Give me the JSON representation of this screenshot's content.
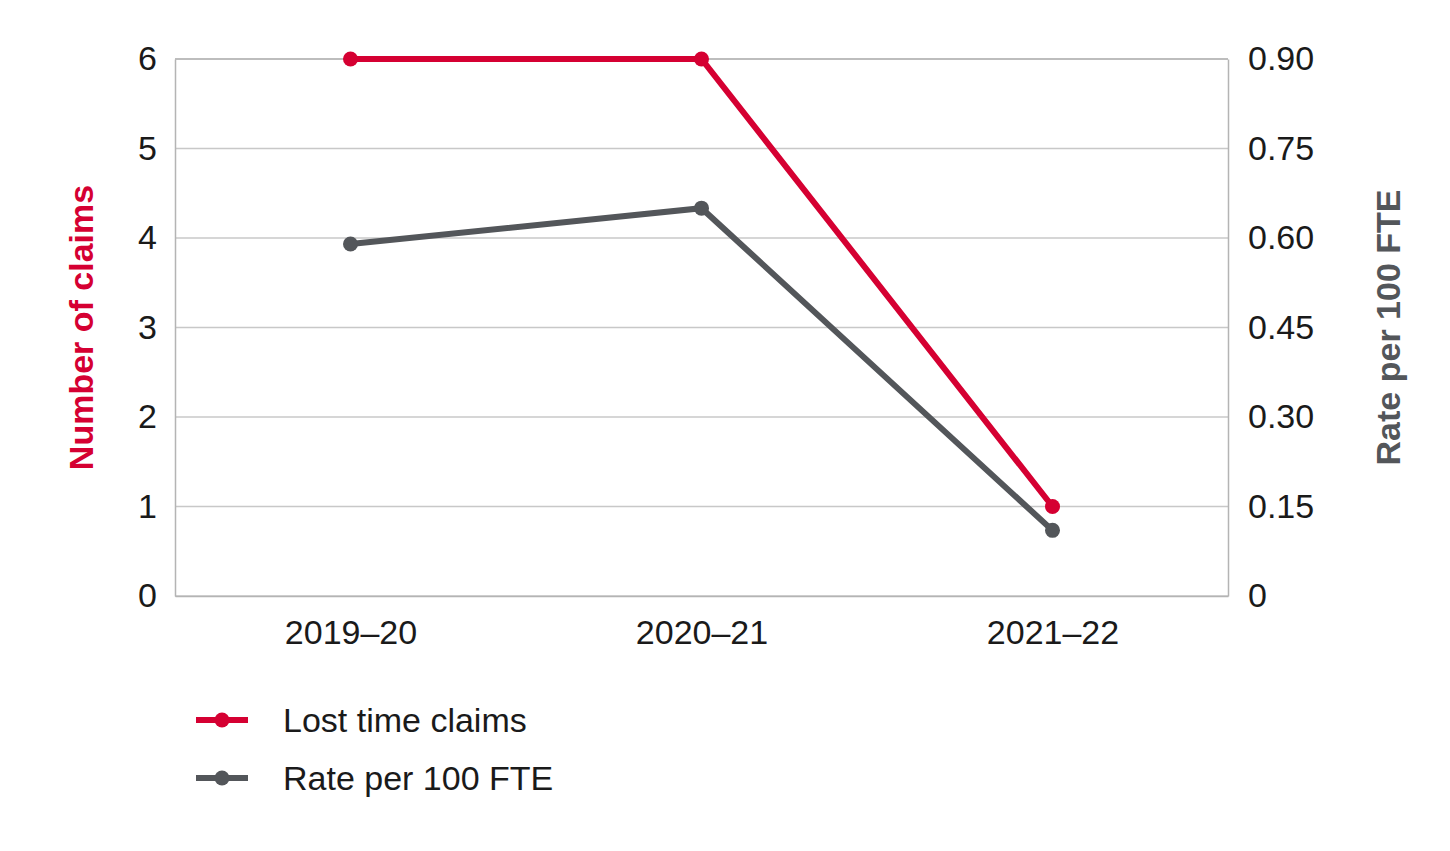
{
  "chart_data": {
    "type": "line",
    "categories": [
      "2019–20",
      "2020–21",
      "2021–22"
    ],
    "series": [
      {
        "name": "Lost time claims",
        "color": "#d50032",
        "values": [
          6,
          6,
          1
        ],
        "marker": "circle",
        "line_style": "solid"
      },
      {
        "name": "Rate per 100 FTE",
        "color": "#53565a",
        "values": [
          0.59,
          0.65,
          0.11
        ],
        "axis": "y2",
        "marker": "circle",
        "line_style": "solid"
      }
    ],
    "y_label": "Number of claims",
    "y2_label": "Rate per 100 FTE",
    "ylim": [
      0,
      6
    ],
    "yticks": [
      0,
      1,
      2,
      3,
      4,
      5,
      6
    ],
    "y2lim": [
      0,
      0.9
    ],
    "y2ticks": [
      0,
      0.15,
      {
        "value": 0.3,
        "label": "0.30"
      },
      0.45,
      {
        "value": 0.6,
        "label": "0.60"
      },
      0.75,
      {
        "value": 0.9,
        "label": "0.90"
      }
    ],
    "grid": true,
    "legend": "bottom"
  }
}
